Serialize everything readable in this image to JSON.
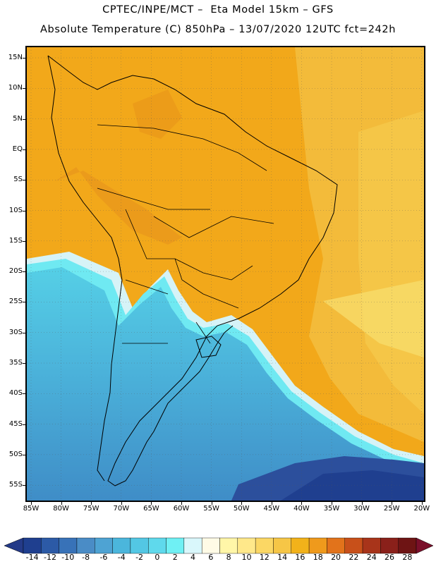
{
  "header": {
    "line1": "CPTEC/INPE/MCT –  Eta Model 15km – GFS",
    "line2": "Absolute Temperature (C) 850hPa – 13/07/2020 12UTC fct=242h"
  },
  "map": {
    "lat_labels": [
      "15N",
      "10N",
      "5N",
      "EQ",
      "5S",
      "10S",
      "15S",
      "20S",
      "25S",
      "30S",
      "35S",
      "40S",
      "45S",
      "50S",
      "55S"
    ],
    "lon_labels": [
      "85W",
      "80W",
      "75W",
      "70W",
      "65W",
      "60W",
      "55W",
      "50W",
      "45W",
      "40W",
      "35W",
      "30W",
      "25W",
      "20W"
    ],
    "grid": "dotted"
  },
  "colorbar": {
    "labels": [
      "-14",
      "-12",
      "-10",
      "-8",
      "-6",
      "-4",
      "-2",
      "0",
      "2",
      "4",
      "6",
      "8",
      "10",
      "12",
      "14",
      "16",
      "18",
      "20",
      "22",
      "24",
      "26",
      "28"
    ],
    "colors": [
      "#1f3f8f",
      "#2c5aa6",
      "#3872b8",
      "#4a8cc6",
      "#4ea3d3",
      "#4bb6dc",
      "#53c7e4",
      "#5fd9ec",
      "#6ff0f4",
      "#d9f7fb",
      "#fffbe6",
      "#fff6a8",
      "#ffe88a",
      "#fbd764",
      "#f6c646",
      "#f2b21a",
      "#ef9a1c",
      "#e2731b",
      "#c8501a",
      "#a8341a",
      "#8a201a",
      "#6e1414"
    ],
    "left_arrow_color": "#243a88",
    "right_arrow_color": "#7a0f2a"
  }
}
